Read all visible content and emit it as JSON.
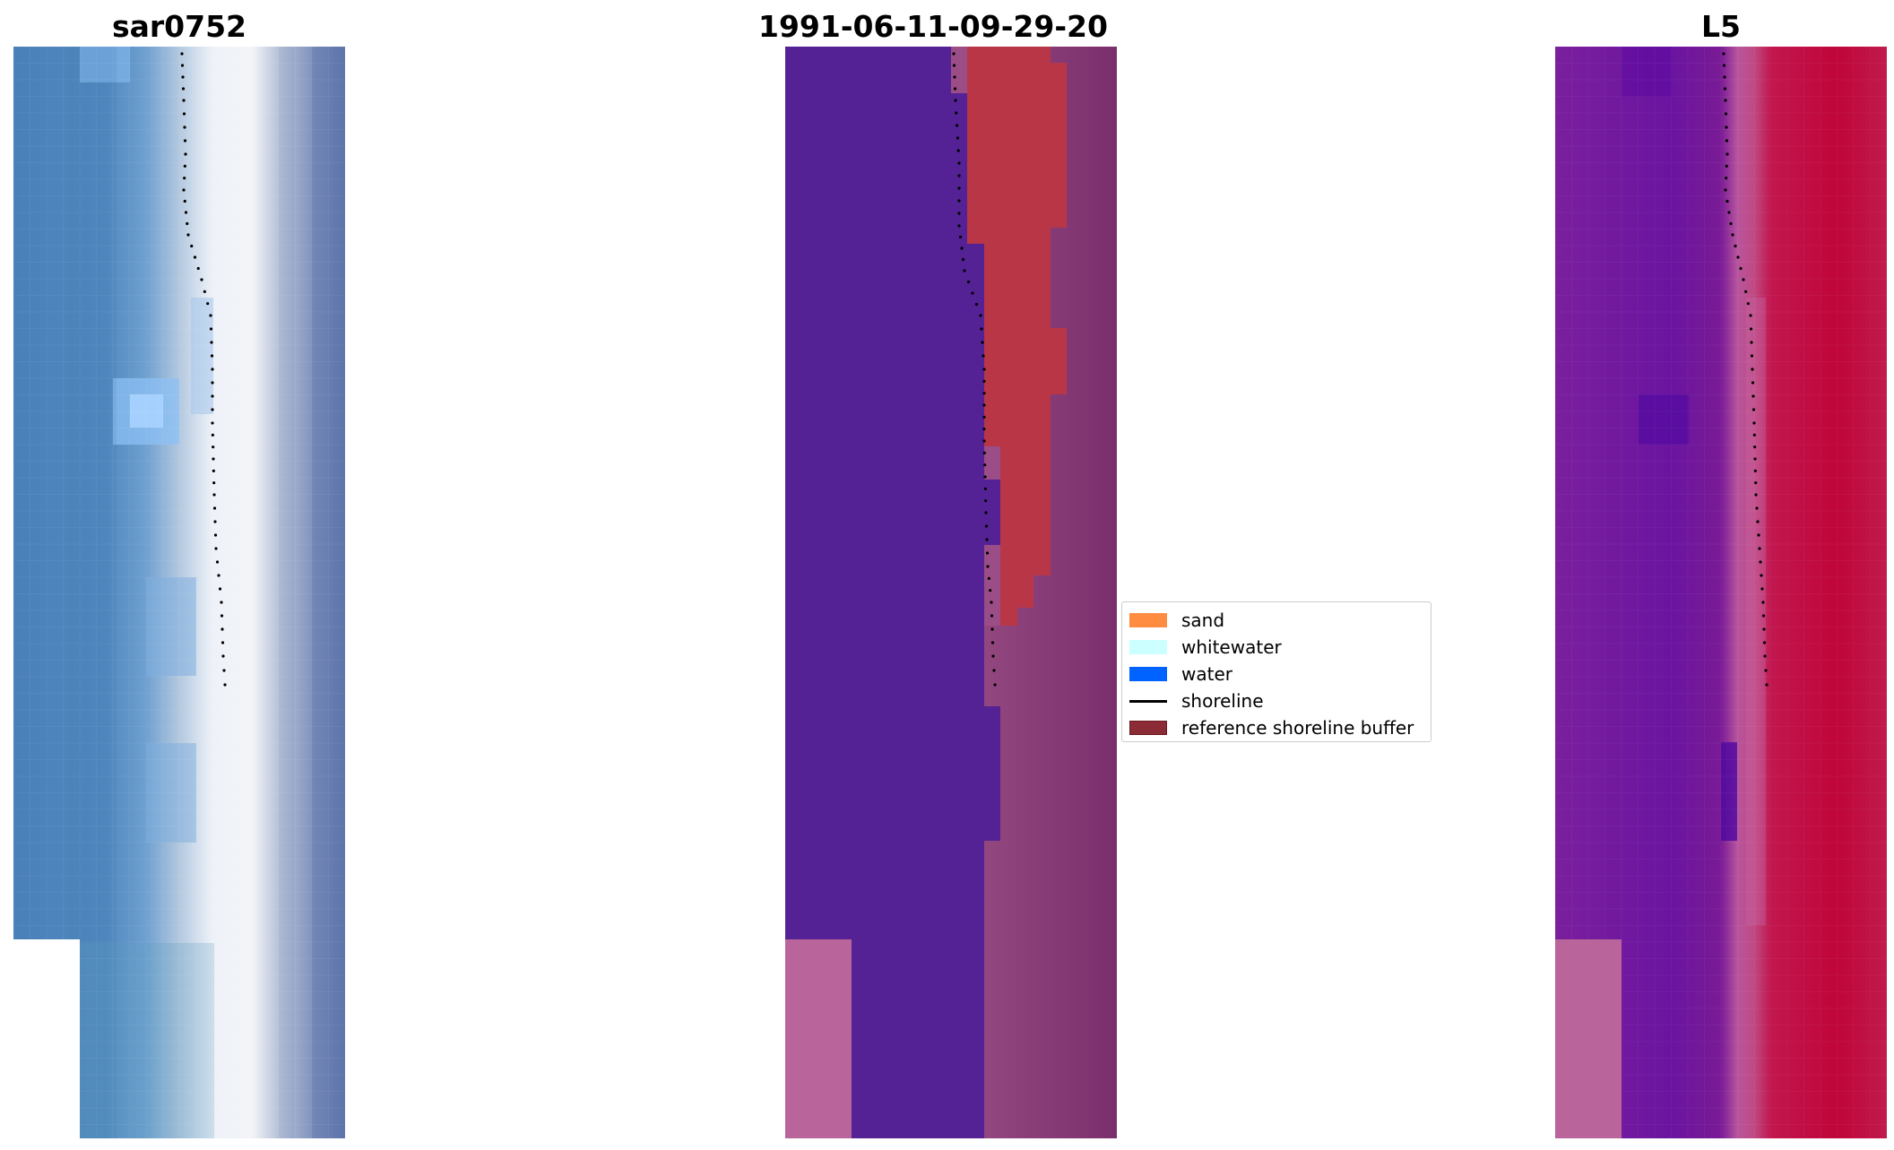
{
  "panels": [
    {
      "title": "sar0752",
      "kind": "rgb-image"
    },
    {
      "title": "1991-06-11-09-29-20",
      "kind": "classified-image"
    },
    {
      "title": "L5",
      "kind": "index-image"
    }
  ],
  "legend": {
    "placement": "center-right of middle panel",
    "items": [
      {
        "label": "sand",
        "type": "patch",
        "color": "#ff8c40"
      },
      {
        "label": "whitewater",
        "type": "patch",
        "color": "#ccffff"
      },
      {
        "label": "water",
        "type": "patch",
        "color": "#0062ff"
      },
      {
        "label": "shoreline",
        "type": "line",
        "color": "#000000"
      },
      {
        "label": "reference shoreline buffer",
        "type": "patch",
        "color": "#8b2b35"
      }
    ]
  },
  "colors": {
    "classified_water": "#542294",
    "classified_buffer": "#b93647",
    "classified_land": "#9a4d86",
    "nodata": "#b9649a",
    "index_low": "#7a1f9d",
    "index_high": "#c0053a",
    "shoreline_dots": "#000000"
  }
}
